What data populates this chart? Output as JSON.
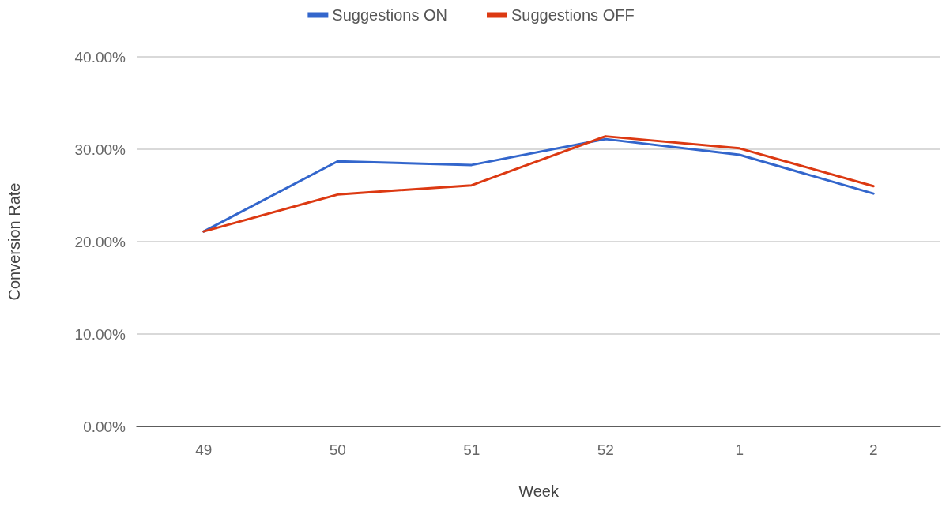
{
  "chart_data": {
    "type": "line",
    "xlabel": "Week",
    "ylabel": "Conversion Rate",
    "categories": [
      "49",
      "50",
      "51",
      "52",
      "1",
      "2"
    ],
    "series": [
      {
        "name": "Suggestions ON",
        "color": "#3366cc",
        "values": [
          21.1,
          28.7,
          28.3,
          31.1,
          29.4,
          25.2
        ]
      },
      {
        "name": "Suggestions OFF",
        "color": "#dc3912",
        "values": [
          21.1,
          25.1,
          26.1,
          31.4,
          30.1,
          26.0
        ]
      }
    ],
    "ylim": [
      0,
      40
    ],
    "yticks": [
      {
        "value": 0,
        "label": "0.00%"
      },
      {
        "value": 10,
        "label": "10.00%"
      },
      {
        "value": 20,
        "label": "20.00%"
      },
      {
        "value": 30,
        "label": "30.00%"
      },
      {
        "value": 40,
        "label": "40.00%"
      }
    ],
    "grid": "y",
    "legend": "top",
    "marker": "none",
    "line_style": "solid"
  }
}
